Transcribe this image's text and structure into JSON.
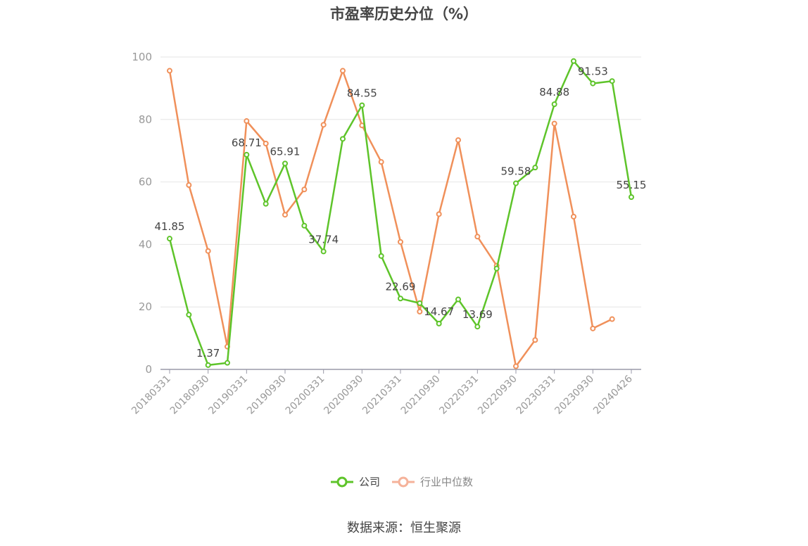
{
  "chart_data": {
    "type": "line",
    "title": "市盈率历史分位（%）",
    "ylim": [
      0,
      100
    ],
    "y_ticks": [
      "0",
      "20",
      "40",
      "60",
      "80",
      "100"
    ],
    "x_tick_labels": [
      "20180331",
      "20180930",
      "20190331",
      "20190930",
      "20200331",
      "20200930",
      "20210331",
      "20210930",
      "20220331",
      "20220930",
      "20230331",
      "20230930",
      "20240426"
    ],
    "x_tick_index": [
      0,
      2,
      4,
      6,
      8,
      10,
      12,
      14,
      16,
      18,
      20,
      22,
      24
    ],
    "x": [
      "20180331",
      "20180630",
      "20180930",
      "20181231",
      "20190331",
      "20190630",
      "20190930",
      "20191231",
      "20200331",
      "20200630",
      "20200930",
      "20201231",
      "20210331",
      "20210630",
      "20210930",
      "20211231",
      "20220331",
      "20220630",
      "20220930",
      "20221231",
      "20230331",
      "20230630",
      "20230930",
      "20231231",
      "20240426"
    ],
    "grid": true,
    "legend_position": "bottom",
    "series": [
      {
        "name": "公司",
        "color": "#5ec42a",
        "values": [
          41.85,
          17.5,
          1.37,
          2.1,
          68.71,
          53.0,
          65.91,
          46.0,
          37.74,
          73.8,
          84.55,
          36.3,
          22.69,
          21.2,
          14.67,
          22.4,
          13.69,
          32.3,
          59.58,
          64.6,
          84.88,
          98.7,
          91.53,
          92.3,
          55.15
        ],
        "labels": [
          "41.85",
          null,
          "1.37",
          null,
          "68.71",
          null,
          "65.91",
          null,
          "37.74",
          null,
          "84.55",
          null,
          "22.69",
          null,
          "14.67",
          null,
          "13.69",
          null,
          "59.58",
          null,
          "84.88",
          null,
          "91.53",
          null,
          "55.15"
        ]
      },
      {
        "name": "行业中位数",
        "color": "#f0905a",
        "values": [
          95.6,
          59.0,
          37.9,
          7.3,
          79.5,
          72.3,
          49.5,
          57.6,
          78.3,
          95.6,
          78.1,
          66.4,
          40.8,
          18.5,
          49.7,
          73.4,
          42.5,
          33.2,
          1.0,
          9.4,
          78.7,
          48.9,
          13.1,
          16.1,
          null
        ]
      }
    ]
  },
  "legend": {
    "company_label": "公司",
    "industry_label": "行业中位数",
    "company_color": "#5ec42a",
    "industry_color": "#f5b29a"
  },
  "source": "数据来源：恒生聚源"
}
